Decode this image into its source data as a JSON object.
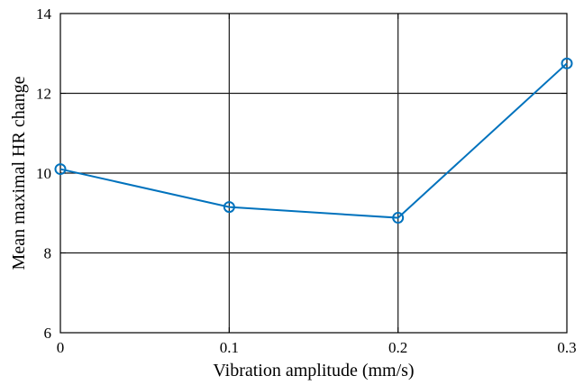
{
  "chart_data": {
    "type": "line",
    "xlabel": "Vibration amplitude (mm/s)",
    "ylabel": "Mean maximal HR change",
    "x": [
      0,
      0.1,
      0.2,
      0.3
    ],
    "series": [
      {
        "values": [
          10.1,
          9.15,
          8.88,
          12.75
        ],
        "color": "#0072BD",
        "marker": "circle"
      }
    ],
    "xlim": [
      0,
      0.3
    ],
    "ylim": [
      6,
      14
    ],
    "xticks": [
      "0",
      "0.1",
      "0.2",
      "0.3"
    ],
    "yticks": [
      "6",
      "8",
      "10",
      "12",
      "14"
    ],
    "grid": true,
    "legend": "none"
  }
}
